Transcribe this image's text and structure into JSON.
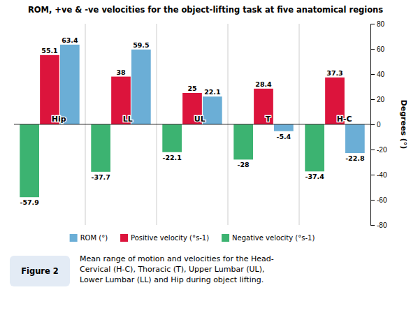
{
  "chart_data": {
    "type": "bar",
    "title": "ROM, +ve & -ve velocities for the object-lifting task at five anatomical regions",
    "categories": [
      "Hip",
      "LL",
      "UL",
      "T",
      "H-C"
    ],
    "series": [
      {
        "name": "Negative velocity (°s-1)",
        "color": "#3cb371",
        "values": [
          -57.9,
          -37.7,
          -22.1,
          -28,
          -37.4
        ]
      },
      {
        "name": "Positive velocity (°s-1)",
        "color": "#dc143c",
        "values": [
          55.1,
          38,
          25,
          28.4,
          37.3
        ]
      },
      {
        "name": "ROM (°)",
        "color": "#6baed6",
        "values": [
          63.4,
          59.5,
          22.1,
          -5.4,
          -22.8
        ]
      }
    ],
    "ylabel": "Degrees (°)",
    "ylim": [
      -80,
      80
    ],
    "yticks": [
      -80,
      -60,
      -40,
      -20,
      0,
      20,
      40,
      60,
      80
    ],
    "data_labels": true,
    "legend": "bottom",
    "annotations": [
      "Figure 2",
      "Mean range of motion and velocities for the Head-\nCervical (H-C), Thoracic (T), Upper Lumbar (UL),\nLower Lumbar (LL) and Hip during object lifting."
    ]
  }
}
